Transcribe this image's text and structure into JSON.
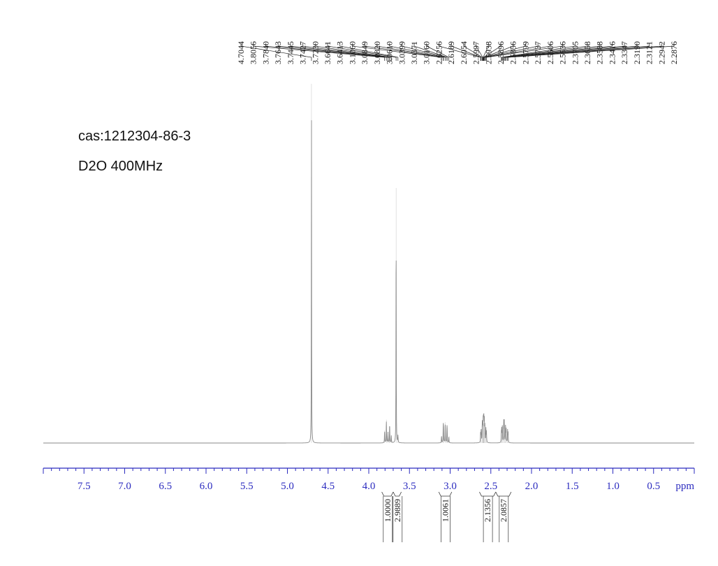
{
  "sample": {
    "cas": "cas:1212304-86-3",
    "solvent": "D2O 400MHz"
  },
  "chart_data": {
    "type": "line",
    "title": "",
    "xlabel": "ppm",
    "ylabel": "",
    "xlim": [
      8.0,
      0.0
    ],
    "x_reversed": true,
    "grid": false,
    "x_ticks": [
      "7.5",
      "7.0",
      "6.5",
      "6.0",
      "5.5",
      "5.0",
      "4.5",
      "4.0",
      "3.5",
      "3.0",
      "2.5",
      "2.0",
      "1.5",
      "1.0",
      "0.5"
    ],
    "peak_labels": [
      "4.7044",
      "3.8056",
      "3.7840",
      "3.7643",
      "3.7445",
      "3.7427",
      "3.7230",
      "3.6641",
      "3.6413",
      "3.1060",
      "3.0849",
      "3.0820",
      "3.0610",
      "3.0399",
      "3.0371",
      "3.0160",
      "2.6256",
      "2.6189",
      "2.6054",
      "2.5997",
      "2.5938",
      "2.5896",
      "2.5856",
      "2.5799",
      "2.5737",
      "2.5606",
      "2.5536",
      "2.3705",
      "2.3658",
      "2.3588",
      "2.3416",
      "2.3347",
      "2.3190",
      "2.3121",
      "2.2942",
      "2.2876"
    ],
    "peaks": [
      {
        "ppm": 4.7044,
        "height": 1.0
      },
      {
        "ppm": 3.8056,
        "height": 0.035
      },
      {
        "ppm": 3.784,
        "height": 0.065
      },
      {
        "ppm": 3.7643,
        "height": 0.03
      },
      {
        "ppm": 3.7445,
        "height": 0.03
      },
      {
        "ppm": 3.7427,
        "height": 0.028
      },
      {
        "ppm": 3.723,
        "height": 0.02
      },
      {
        "ppm": 3.6641,
        "height": 0.71
      },
      {
        "ppm": 3.6413,
        "height": 0.02
      },
      {
        "ppm": 3.106,
        "height": 0.02
      },
      {
        "ppm": 3.0849,
        "height": 0.04
      },
      {
        "ppm": 3.082,
        "height": 0.038
      },
      {
        "ppm": 3.061,
        "height": 0.058
      },
      {
        "ppm": 3.0399,
        "height": 0.035
      },
      {
        "ppm": 3.0371,
        "height": 0.033
      },
      {
        "ppm": 3.016,
        "height": 0.018
      },
      {
        "ppm": 2.6256,
        "height": 0.03
      },
      {
        "ppm": 2.6189,
        "height": 0.038
      },
      {
        "ppm": 2.6054,
        "height": 0.052
      },
      {
        "ppm": 2.5997,
        "height": 0.045
      },
      {
        "ppm": 2.5938,
        "height": 0.058
      },
      {
        "ppm": 2.5896,
        "height": 0.05
      },
      {
        "ppm": 2.5856,
        "height": 0.055
      },
      {
        "ppm": 2.5799,
        "height": 0.06
      },
      {
        "ppm": 2.5737,
        "height": 0.05
      },
      {
        "ppm": 2.5606,
        "height": 0.04
      },
      {
        "ppm": 2.5536,
        "height": 0.03
      },
      {
        "ppm": 2.3705,
        "height": 0.03
      },
      {
        "ppm": 2.3658,
        "height": 0.04
      },
      {
        "ppm": 2.3588,
        "height": 0.045
      },
      {
        "ppm": 2.3416,
        "height": 0.06
      },
      {
        "ppm": 2.3347,
        "height": 0.058
      },
      {
        "ppm": 2.319,
        "height": 0.05
      },
      {
        "ppm": 2.3121,
        "height": 0.042
      },
      {
        "ppm": 2.2942,
        "height": 0.035
      },
      {
        "ppm": 2.2876,
        "height": 0.028
      }
    ],
    "integrals": [
      {
        "label": "1.0000",
        "from": 3.84,
        "to": 3.7
      },
      {
        "label": "2.9889",
        "from": 3.7,
        "to": 3.6
      },
      {
        "label": "1.0061",
        "from": 3.14,
        "to": 2.98
      },
      {
        "label": "2.1356",
        "from": 2.64,
        "to": 2.44
      },
      {
        "label": "2.0857",
        "from": 2.44,
        "to": 2.25
      }
    ],
    "colors": {
      "spectrum": "#8a8a8a",
      "axis": "#2b2bbf",
      "labels": "#111111"
    }
  }
}
